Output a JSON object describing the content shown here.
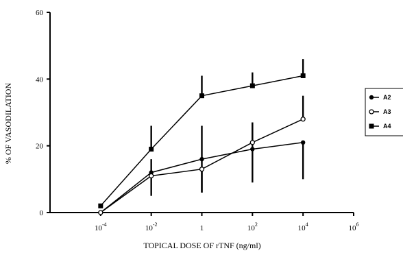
{
  "chart_data": {
    "type": "line",
    "title": "",
    "xlabel": "TOPICAL DOSE OF rTNF  (ng/ml)",
    "ylabel": "% OF VASODILATION",
    "x_scale": "log",
    "x_ticks": [
      {
        "base": "10",
        "exp": "-4",
        "value": 0.0001
      },
      {
        "base": "10",
        "exp": "-2",
        "value": 0.01
      },
      {
        "base": "1",
        "exp": "",
        "value": 1
      },
      {
        "base": "10",
        "exp": "2",
        "value": 100
      },
      {
        "base": "10",
        "exp": "4",
        "value": 10000
      },
      {
        "base": "10",
        "exp": "6",
        "value": 1000000
      }
    ],
    "xlim": [
      1e-06,
      1000000
    ],
    "y_ticks": [
      "0",
      "20",
      "40",
      "60"
    ],
    "ylim": [
      0,
      60
    ],
    "grid": false,
    "legend_position": "right",
    "x": [
      0.0001,
      0.01,
      1,
      100,
      10000
    ],
    "series": [
      {
        "name": "A2",
        "marker": "filled-circle",
        "values": [
          0,
          12,
          16,
          19,
          21
        ],
        "error_upper": [
          0,
          4,
          10,
          8,
          0
        ],
        "error_lower": [
          0,
          0,
          10,
          10,
          11
        ]
      },
      {
        "name": "A3",
        "marker": "open-circle",
        "values": [
          0,
          11,
          13,
          21,
          28
        ],
        "error_upper": [
          0,
          0,
          0,
          6,
          7
        ],
        "error_lower": [
          0,
          6,
          7,
          0,
          0
        ]
      },
      {
        "name": "A4",
        "marker": "filled-square",
        "values": [
          2,
          19,
          35,
          38,
          41
        ],
        "error_upper": [
          0,
          7,
          6,
          4,
          5
        ],
        "error_lower": [
          0,
          0,
          0,
          0,
          0
        ]
      }
    ]
  }
}
